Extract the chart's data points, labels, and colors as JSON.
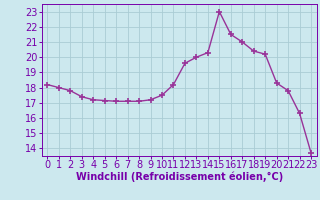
{
  "x": [
    0,
    1,
    2,
    3,
    4,
    5,
    6,
    7,
    8,
    9,
    10,
    11,
    12,
    13,
    14,
    15,
    16,
    17,
    18,
    19,
    20,
    21,
    22,
    23
  ],
  "y": [
    18.2,
    18.0,
    17.8,
    17.4,
    17.2,
    17.15,
    17.1,
    17.1,
    17.1,
    17.2,
    17.5,
    18.2,
    19.6,
    20.0,
    20.3,
    23.0,
    21.5,
    21.0,
    20.4,
    20.2,
    18.3,
    17.8,
    16.3,
    13.7
  ],
  "line_color": "#993399",
  "marker": "+",
  "marker_size": 4,
  "marker_lw": 1.2,
  "line_width": 1.0,
  "bg_color": "#cce8ee",
  "grid_color": "#aaccd4",
  "xlabel": "Windchill (Refroidissement éolien,°C)",
  "ylabel_ticks": [
    14,
    15,
    16,
    17,
    18,
    19,
    20,
    21,
    22,
    23
  ],
  "xlim": [
    -0.5,
    23.5
  ],
  "ylim": [
    13.5,
    23.5
  ],
  "axis_color": "#7700aa",
  "label_fontsize": 7,
  "tick_fontsize": 7
}
